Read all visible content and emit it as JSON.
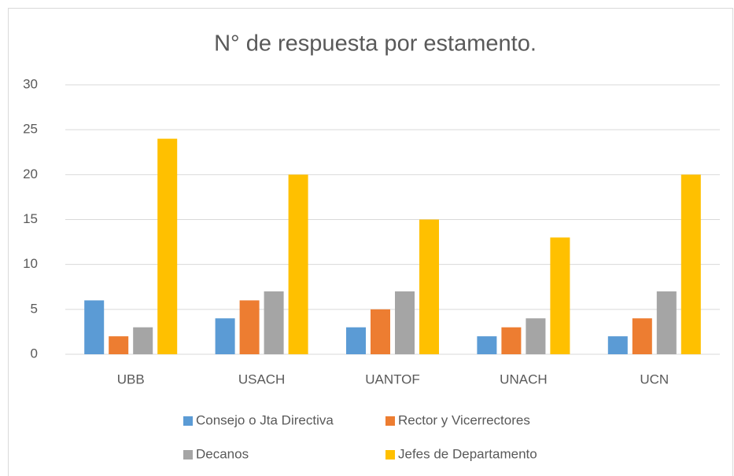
{
  "chart_data": {
    "type": "bar",
    "title": "N° de respuesta por estamento.",
    "categories": [
      "UBB",
      "USACH",
      "UANTOF",
      "UNACH",
      "UCN"
    ],
    "series": [
      {
        "name": "Consejo o Jta Directiva",
        "color": "#5b9bd5",
        "values": [
          6,
          4,
          3,
          2,
          2
        ]
      },
      {
        "name": "Rector y Vicerrectores",
        "color": "#ed7d31",
        "values": [
          2,
          6,
          5,
          3,
          4
        ]
      },
      {
        "name": "Decanos",
        "color": "#a5a5a5",
        "values": [
          3,
          7,
          7,
          4,
          7
        ]
      },
      {
        "name": "Jefes de Departamento",
        "color": "#ffc000",
        "values": [
          24,
          20,
          15,
          13,
          20
        ]
      }
    ],
    "ylim": [
      0,
      30
    ],
    "yticks": [
      0,
      5,
      10,
      15,
      20,
      25,
      30
    ],
    "grid": true,
    "legend": "bottom"
  }
}
